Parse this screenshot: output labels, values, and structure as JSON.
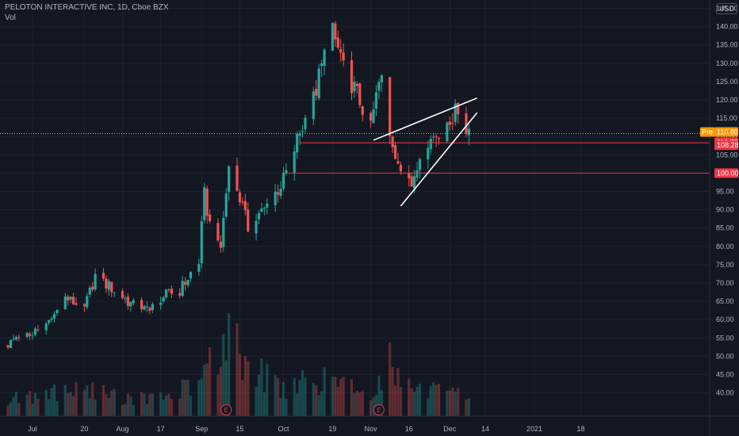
{
  "header": {
    "ticker_title": "PELOTON INTERACTIVE INC, 1D, Cboe BZX",
    "volume_label": "Vol",
    "currency": "USD"
  },
  "colors": {
    "background": "#131722",
    "up": "#26a69a",
    "down": "#ef5350",
    "grid": "#1e222d",
    "level_line": "#f23645",
    "pre_market": "#ff9800",
    "text": "#b2b5be"
  },
  "price_tags": {
    "pre_label": "Pre",
    "pre_value": "110.80",
    "last": "110.79",
    "level_1": "108.28",
    "level_2": "100.00"
  },
  "earnings_markers": [
    {
      "label": "E",
      "date": "2020-09-10"
    },
    {
      "label": "E",
      "date": "2020-11-05"
    }
  ],
  "chart_data": {
    "type": "candlestick",
    "y_ticks": [
      40,
      45,
      50,
      55,
      60,
      65,
      70,
      75,
      80,
      85,
      90,
      95,
      100,
      105,
      110,
      115,
      120,
      125,
      130,
      135,
      140,
      145
    ],
    "y_tick_labels": [
      "40.00",
      "45.00",
      "50.00",
      "55.00",
      "60.00",
      "65.00",
      "70.00",
      "75.00",
      "80.00",
      "85.00",
      "90.00",
      "95.00",
      "100.00",
      "105.00",
      "110.00",
      "115.00",
      "120.00",
      "125.00",
      "130.00",
      "135.00",
      "140.00",
      "145.00"
    ],
    "ylim": [
      38,
      145
    ],
    "x_ticks": [
      {
        "label": "Jul",
        "date": "2020-07-01"
      },
      {
        "label": "20",
        "date": "2020-07-20"
      },
      {
        "label": "Aug",
        "date": "2020-08-03"
      },
      {
        "label": "17",
        "date": "2020-08-17"
      },
      {
        "label": "Sep",
        "date": "2020-09-01"
      },
      {
        "label": "15",
        "date": "2020-09-15"
      },
      {
        "label": "Oct",
        "date": "2020-10-01"
      },
      {
        "label": "19",
        "date": "2020-10-19"
      },
      {
        "label": "Nov",
        "date": "2020-11-02"
      },
      {
        "label": "16",
        "date": "2020-11-16"
      },
      {
        "label": "Dec",
        "date": "2020-12-01"
      },
      {
        "label": "14",
        "date": "2020-12-14"
      },
      {
        "label": "2021",
        "date": "2021-01-01"
      },
      {
        "label": "18",
        "date": "2021-01-18"
      }
    ],
    "close_path": [
      [
        "2020-06-22",
        53
      ],
      [
        "2020-06-29",
        56
      ],
      [
        "2020-07-06",
        58
      ],
      [
        "2020-07-13",
        66
      ],
      [
        "2020-07-20",
        63
      ],
      [
        "2020-07-24",
        72
      ],
      [
        "2020-07-31",
        68
      ],
      [
        "2020-08-10",
        62
      ],
      [
        "2020-08-17",
        66
      ],
      [
        "2020-08-24",
        68
      ],
      [
        "2020-08-31",
        76
      ],
      [
        "2020-09-02",
        94
      ],
      [
        "2020-09-04",
        86
      ],
      [
        "2020-09-08",
        80
      ],
      [
        "2020-09-11",
        102
      ],
      [
        "2020-09-14",
        96
      ],
      [
        "2020-09-18",
        85
      ],
      [
        "2020-09-24",
        90
      ],
      [
        "2020-10-01",
        98
      ],
      [
        "2020-10-07",
        111
      ],
      [
        "2020-10-12",
        120
      ],
      [
        "2020-10-16",
        132
      ],
      [
        "2020-10-19",
        138
      ],
      [
        "2020-10-23",
        130
      ],
      [
        "2020-10-27",
        123
      ],
      [
        "2020-11-02",
        113
      ],
      [
        "2020-11-06",
        128
      ],
      [
        "2020-11-10",
        105
      ],
      [
        "2020-11-13",
        103
      ],
      [
        "2020-11-17",
        97
      ],
      [
        "2020-11-20",
        106
      ],
      [
        "2020-11-25",
        110
      ],
      [
        "2020-11-30",
        114
      ],
      [
        "2020-12-04",
        117
      ],
      [
        "2020-12-08",
        112
      ]
    ],
    "volume_path": [
      [
        "2020-06-22",
        7
      ],
      [
        "2020-07-06",
        9
      ],
      [
        "2020-07-20",
        11
      ],
      [
        "2020-08-03",
        8
      ],
      [
        "2020-08-17",
        7
      ],
      [
        "2020-08-31",
        14
      ],
      [
        "2020-09-04",
        22
      ],
      [
        "2020-09-10",
        31
      ],
      [
        "2020-09-11",
        36
      ],
      [
        "2020-09-18",
        20
      ],
      [
        "2020-10-01",
        12
      ],
      [
        "2020-10-12",
        15
      ],
      [
        "2020-10-19",
        14
      ],
      [
        "2020-11-02",
        10
      ],
      [
        "2020-11-09",
        22
      ],
      [
        "2020-11-11",
        18
      ],
      [
        "2020-11-16",
        12
      ],
      [
        "2020-11-30",
        9
      ],
      [
        "2020-12-08",
        8
      ]
    ],
    "volume_scale_max": 40,
    "horizontal_lines": [
      {
        "price": 108.28,
        "start_date": "2020-10-07"
      },
      {
        "price": 100.0,
        "start_date": "2020-10-01"
      }
    ],
    "trendlines": [
      {
        "from": [
          "2020-11-03",
          109.0
        ],
        "to": [
          "2020-12-11",
          120.5
        ]
      },
      {
        "from": [
          "2020-11-13",
          91.0
        ],
        "to": [
          "2020-12-11",
          116.5
        ]
      }
    ],
    "pre_market_price": 110.8,
    "last_price": 110.79,
    "grid": true,
    "legend": "none"
  }
}
